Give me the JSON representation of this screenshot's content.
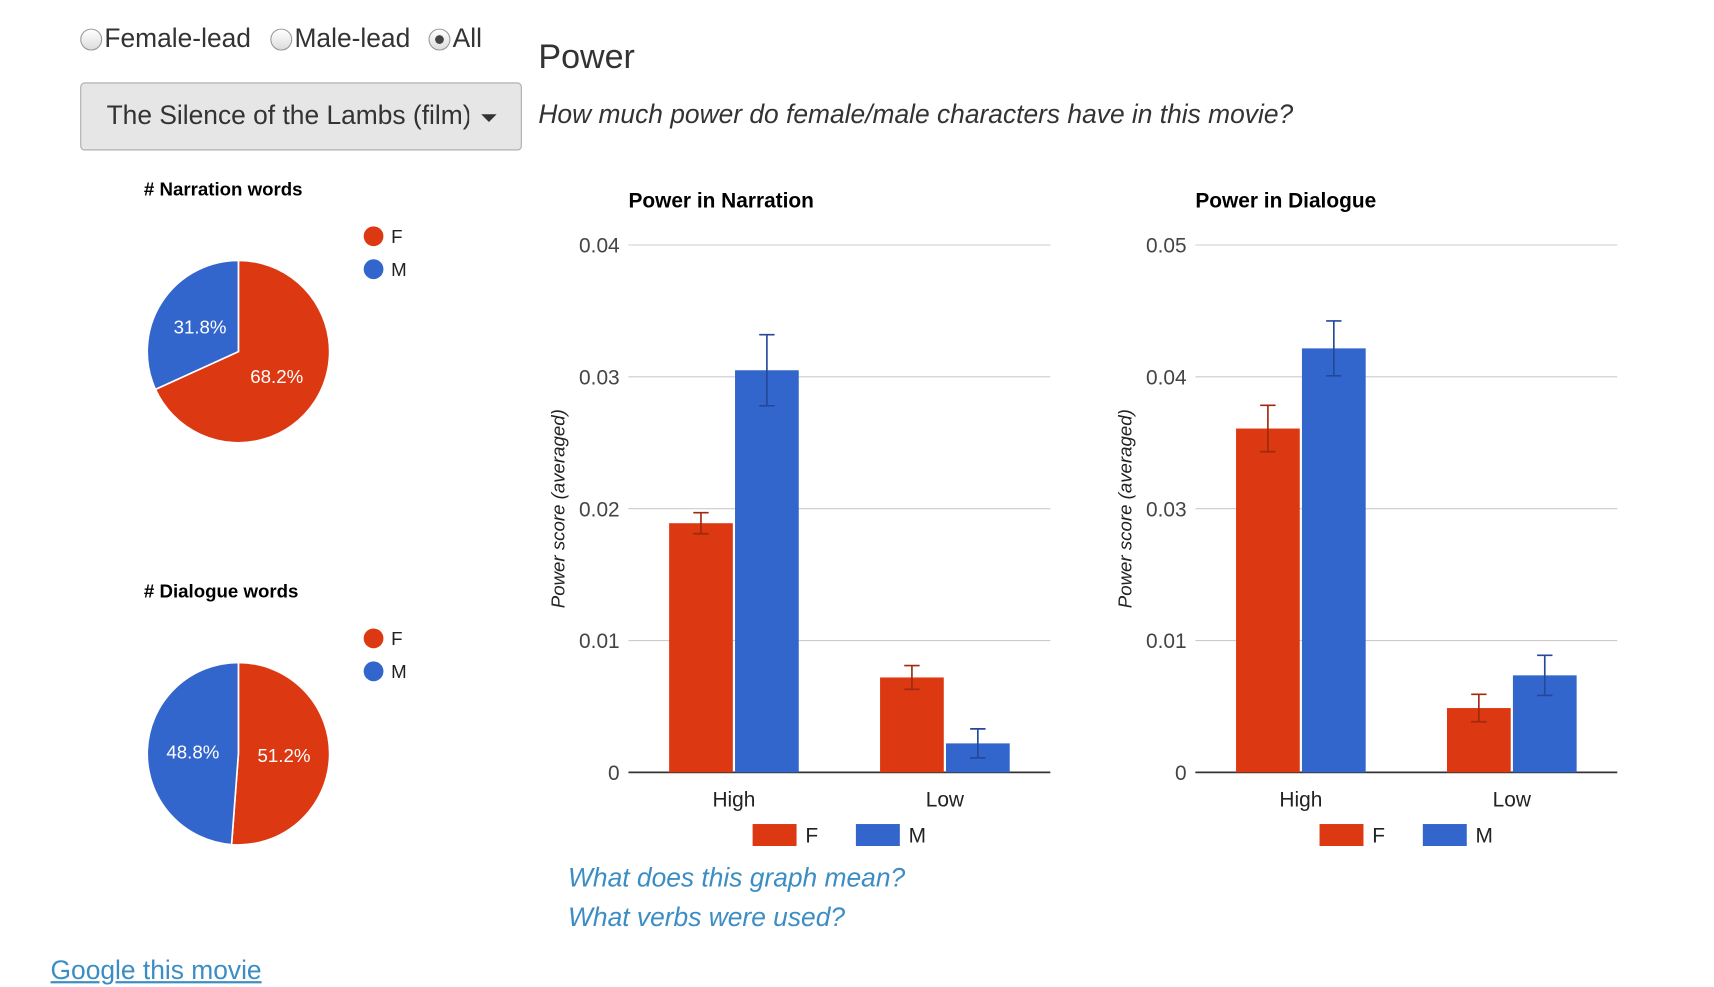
{
  "controls": {
    "radios": [
      {
        "label": "Female-lead",
        "checked": false
      },
      {
        "label": "Male-lead",
        "checked": false
      },
      {
        "label": "All",
        "checked": true
      }
    ],
    "dropdown": "The Silence of the Lambs (film)"
  },
  "section": {
    "title": "Power",
    "subtitle": "How much power do female/male characters have in this movie?"
  },
  "links": [
    "What does this graph mean?",
    "What verbs were used?",
    "Google this movie"
  ],
  "chart_data": [
    {
      "type": "pie",
      "title": "# Narration words",
      "categories": [
        "F",
        "M"
      ],
      "values": [
        68.2,
        31.8
      ],
      "value_labels": [
        "68.2%",
        "31.8%"
      ],
      "colors": [
        "#dc3912",
        "#3366cc"
      ],
      "legend": "right"
    },
    {
      "type": "pie",
      "title": "# Dialogue words",
      "categories": [
        "F",
        "M"
      ],
      "values": [
        51.2,
        48.8
      ],
      "value_labels": [
        "51.2%",
        "48.8%"
      ],
      "colors": [
        "#dc3912",
        "#3366cc"
      ],
      "legend": "right"
    },
    {
      "type": "bar",
      "title": "Power in Narration",
      "y_label": "Power score (averaged)",
      "categories": [
        "High",
        "Low"
      ],
      "series": [
        {
          "name": "F",
          "color": "#dc3912",
          "values": [
            0.0189,
            0.0072
          ],
          "errors": [
            0.0008,
            0.0009
          ]
        },
        {
          "name": "M",
          "color": "#3366cc",
          "values": [
            0.0305,
            0.0022
          ],
          "errors": [
            0.0027,
            0.0011
          ]
        }
      ],
      "ylim": [
        0,
        0.04
      ],
      "yticks": [
        0,
        0.01,
        0.02,
        0.03,
        0.04
      ],
      "grid": true,
      "legend": "bottom"
    },
    {
      "type": "bar",
      "title": "Power in Dialogue",
      "y_label": "Power score (averaged)",
      "categories": [
        "High",
        "Low"
      ],
      "series": [
        {
          "name": "F",
          "color": "#dc3912",
          "values": [
            0.0326,
            0.0061
          ],
          "errors": [
            0.0022,
            0.0013
          ]
        },
        {
          "name": "M",
          "color": "#3366cc",
          "values": [
            0.0402,
            0.0092
          ],
          "errors": [
            0.0026,
            0.0019
          ]
        }
      ],
      "ylim": [
        0,
        0.05
      ],
      "yticks": [
        0,
        {
          "value": 0.0125,
          "label": "0.01"
        },
        {
          "value": 0.025,
          "label": "0.03"
        },
        {
          "value": 0.0375,
          "label": "0.04"
        },
        0.05
      ],
      "grid": true,
      "legend": "bottom"
    }
  ]
}
